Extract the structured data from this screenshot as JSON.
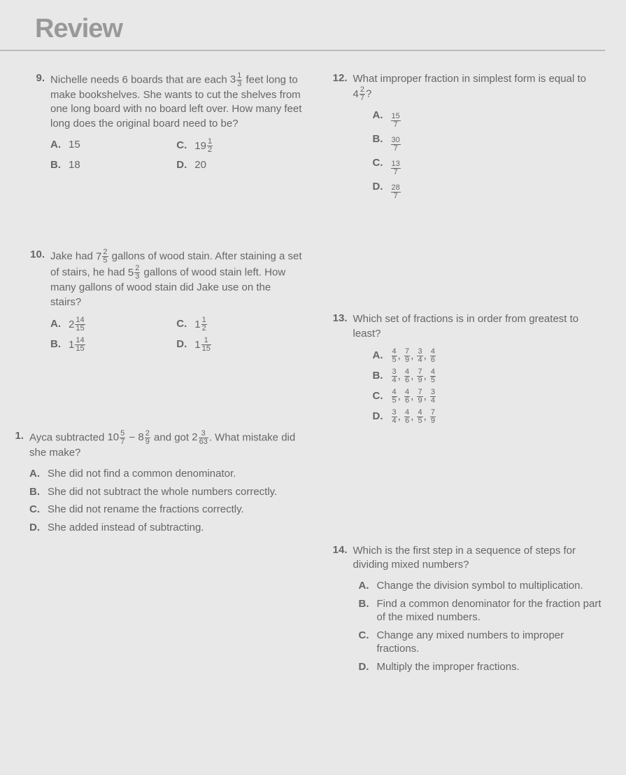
{
  "title": "Review",
  "left": {
    "q9": {
      "num": "9.",
      "text_parts": [
        "Nichelle needs 6 boards that are each ",
        " feet long to make bookshelves. She wants to cut the shelves from one long board with no board left over. How many feet long does the original board need to be?"
      ],
      "mixed": {
        "w": "3",
        "n": "1",
        "d": "3"
      },
      "opts": {
        "A": {
          "text": "15"
        },
        "B": {
          "text": "18"
        },
        "C": {
          "mixed": {
            "w": "19",
            "n": "1",
            "d": "2"
          }
        },
        "D": {
          "text": "20"
        }
      }
    },
    "q10": {
      "num": "10.",
      "text_parts": [
        "Jake had ",
        " gallons of wood stain. After staining a set of stairs, he had ",
        " gallons of wood stain left. How many gallons of wood stain did Jake use on the stairs?"
      ],
      "mixed1": {
        "w": "7",
        "n": "2",
        "d": "5"
      },
      "mixed2": {
        "w": "5",
        "n": "2",
        "d": "3"
      },
      "opts": {
        "A": {
          "mixed": {
            "w": "2",
            "n": "14",
            "d": "15"
          }
        },
        "B": {
          "mixed": {
            "w": "1",
            "n": "14",
            "d": "15"
          }
        },
        "C": {
          "mixed": {
            "w": "1",
            "n": "1",
            "d": "2"
          }
        },
        "D": {
          "mixed": {
            "w": "1",
            "n": "1",
            "d": "15"
          }
        }
      }
    },
    "q11": {
      "num": "1.",
      "text_parts": [
        "Ayca subtracted ",
        " − ",
        " and got ",
        ". What mistake did she make?"
      ],
      "mixed1": {
        "w": "10",
        "n": "5",
        "d": "7"
      },
      "mixed2": {
        "w": "8",
        "n": "2",
        "d": "9"
      },
      "mixed3": {
        "w": "2",
        "n": "3",
        "d": "63"
      },
      "opts": {
        "A": "She did not find a common denominator.",
        "B": "She did not subtract the whole numbers correctly.",
        "C": "She did not rename the fractions correctly.",
        "D": "She added instead of subtracting."
      }
    }
  },
  "right": {
    "q12": {
      "num": "12.",
      "text_parts": [
        "What improper fraction in simplest form is equal to ",
        "?"
      ],
      "mixed": {
        "w": "4",
        "n": "2",
        "d": "7"
      },
      "opts": {
        "A": {
          "frac": {
            "n": "15",
            "d": "7"
          }
        },
        "B": {
          "frac": {
            "n": "30",
            "d": "7"
          }
        },
        "C": {
          "frac": {
            "n": "13",
            "d": "7"
          }
        },
        "D": {
          "frac": {
            "n": "28",
            "d": "7"
          }
        }
      }
    },
    "q13": {
      "num": "13.",
      "text": "Which set of fractions is in order from greatest to least?",
      "opts": {
        "A": [
          {
            "n": "4",
            "d": "5"
          },
          {
            "n": "7",
            "d": "9"
          },
          {
            "n": "3",
            "d": "4"
          },
          {
            "n": "4",
            "d": "6"
          }
        ],
        "B": [
          {
            "n": "3",
            "d": "4"
          },
          {
            "n": "4",
            "d": "6"
          },
          {
            "n": "7",
            "d": "9"
          },
          {
            "n": "4",
            "d": "5"
          }
        ],
        "C": [
          {
            "n": "4",
            "d": "5"
          },
          {
            "n": "4",
            "d": "6"
          },
          {
            "n": "7",
            "d": "9"
          },
          {
            "n": "3",
            "d": "4"
          }
        ],
        "D": [
          {
            "n": "3",
            "d": "4"
          },
          {
            "n": "4",
            "d": "6"
          },
          {
            "n": "4",
            "d": "5"
          },
          {
            "n": "7",
            "d": "9"
          }
        ]
      }
    },
    "q14": {
      "num": "14.",
      "text": "Which is the first step in a sequence of steps for dividing mixed numbers?",
      "opts": {
        "A": "Change the division symbol to multiplication.",
        "B": "Find a common denominator for the fraction part of the mixed numbers.",
        "C": "Change any mixed numbers to improper fractions.",
        "D": "Multiply the improper fractions."
      }
    }
  },
  "labels": {
    "A": "A.",
    "B": "B.",
    "C": "C.",
    "D": "D."
  }
}
